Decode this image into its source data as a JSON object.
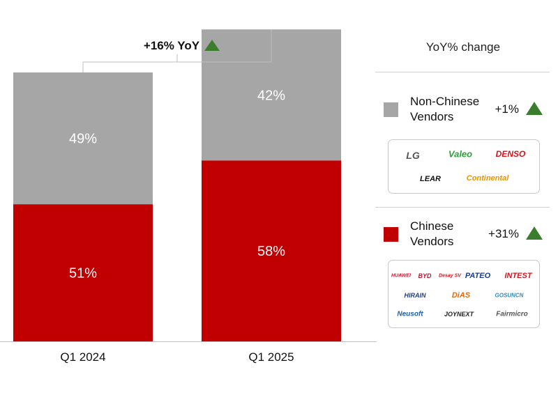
{
  "chart_data": {
    "type": "bar",
    "stacked": true,
    "categories": [
      "Q1 2024",
      "Q1 2025"
    ],
    "series": [
      {
        "name": "Chinese Vendors",
        "color": "#c00000",
        "values": [
          51,
          58
        ]
      },
      {
        "name": "Non-Chinese Vendors",
        "color": "#a6a6a6",
        "values": [
          49,
          42
        ]
      }
    ],
    "total_index": [
      100,
      116
    ],
    "data_label_format": "{v}%",
    "ylim": [
      0,
      116
    ],
    "title": "",
    "xlabel": "",
    "ylabel": "",
    "annotation": "+16% YoY",
    "grid": false
  },
  "legend": {
    "header": "YoY% change",
    "items": [
      {
        "name": "Non-Chinese Vendors",
        "change": "+1%",
        "color": "#a6a6a6"
      },
      {
        "name": "Chinese Vendors",
        "change": "+31%",
        "color": "#c00000"
      }
    ]
  },
  "logos": {
    "non_chinese": [
      {
        "text": "LG",
        "color": "#555555"
      },
      {
        "text": "Valeo",
        "color": "#2e9e3a"
      },
      {
        "text": "DENSO",
        "color": "#d4141d"
      },
      {
        "text": "LEAR",
        "color": "#111111"
      },
      {
        "text": "Continental",
        "color": "#e69500"
      }
    ],
    "chinese": [
      {
        "text": "HUAWEI",
        "color": "#c8102e"
      },
      {
        "text": "BYD",
        "color": "#c8102e"
      },
      {
        "text": "Desay SV",
        "color": "#d4141d"
      },
      {
        "text": "PATEO",
        "color": "#1a3d8f"
      },
      {
        "text": "INTEST",
        "color": "#d4141d"
      },
      {
        "text": "HIRAIN",
        "color": "#1a3d8f"
      },
      {
        "text": "DiAS",
        "color": "#e06a10"
      },
      {
        "text": "GOSUNCN",
        "color": "#2a8ac0"
      },
      {
        "text": "Neusoft",
        "color": "#1f5fa8"
      },
      {
        "text": "JOYNEXT",
        "color": "#222222"
      },
      {
        "text": "Fairmicro",
        "color": "#555555"
      }
    ]
  },
  "colors": {
    "up_arrow": "#3a7d2c",
    "bar_label": "#ffffff",
    "axis": "#bfbfbf",
    "bracket": "#bfbfbf"
  }
}
